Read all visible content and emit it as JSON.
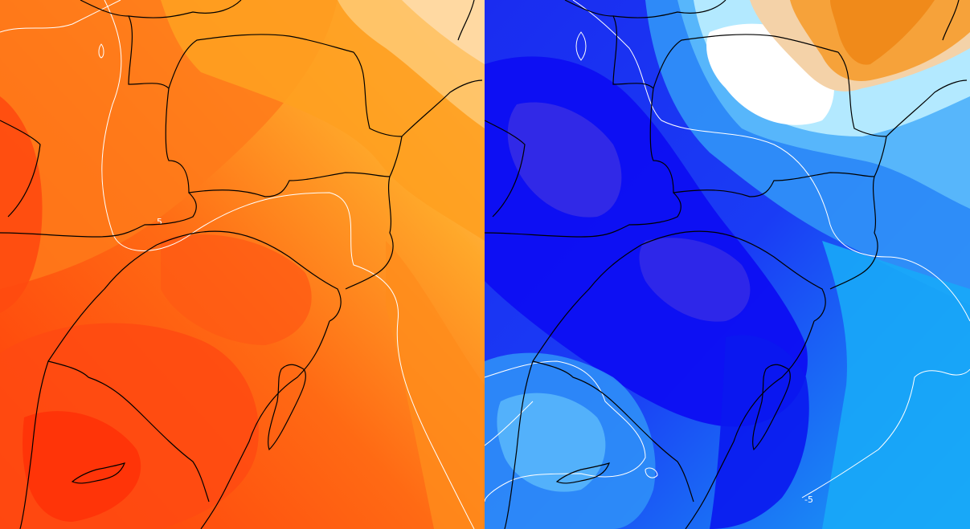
{
  "panels": [
    {
      "id": "warm-anomaly",
      "colors": [
        "#ff3a0a",
        "#ff5a10",
        "#ff7a1a",
        "#ffa020",
        "#ffb84a",
        "#ffd89a"
      ],
      "contour_label": "5"
    },
    {
      "id": "cold-anomaly",
      "colors": [
        "#5b3ce0",
        "#1a1af5",
        "#2a5af8",
        "#2f8ff8",
        "#5ab8fb",
        "#a8e6ff",
        "#ffffff",
        "#f6a23a"
      ],
      "contour_label": "-5"
    }
  ]
}
